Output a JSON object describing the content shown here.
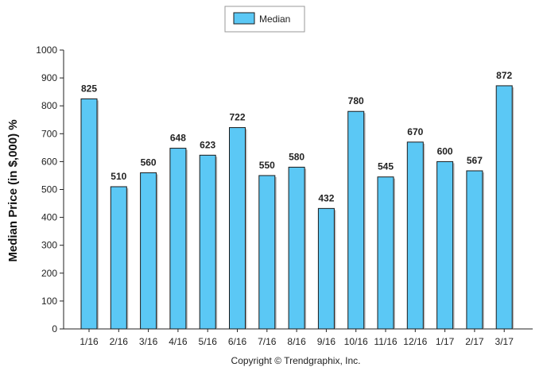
{
  "chart_data": {
    "type": "bar",
    "categories": [
      "1/16",
      "2/16",
      "3/16",
      "4/16",
      "5/16",
      "6/16",
      "7/16",
      "8/16",
      "9/16",
      "10/16",
      "11/16",
      "12/16",
      "1/17",
      "2/17",
      "3/17"
    ],
    "series": [
      {
        "name": "Median",
        "values": [
          825,
          510,
          560,
          648,
          623,
          722,
          550,
          580,
          432,
          780,
          545,
          670,
          600,
          567,
          872
        ]
      }
    ],
    "ylabel": "Median Price (in $,000) %",
    "xlabel": "",
    "ylim": [
      0,
      1000
    ],
    "yticks": [
      0,
      100,
      200,
      300,
      400,
      500,
      600,
      700,
      800,
      900,
      1000
    ],
    "grid": false,
    "legend": "top-center",
    "bar_color": "#5bc8f5",
    "bar_edge_color": "#1a1a1a"
  },
  "footer": {
    "copyright": "Copyright © Trendgraphix, Inc."
  }
}
